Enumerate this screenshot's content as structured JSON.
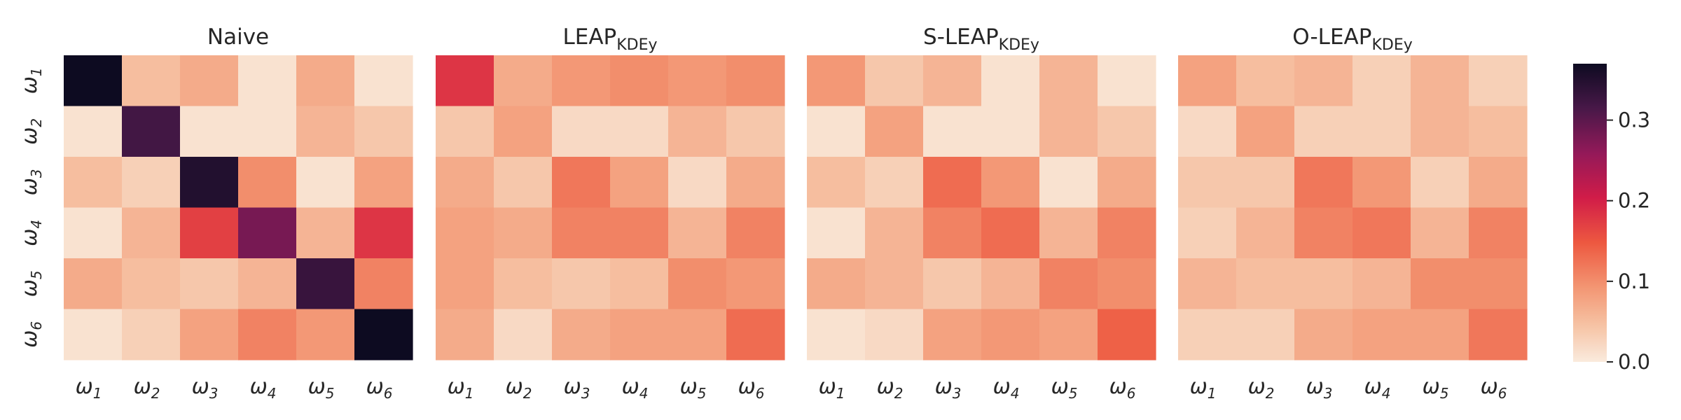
{
  "chart_data": {
    "type": "heatmap",
    "row_labels": [
      {
        "base": "ω",
        "sub": "1"
      },
      {
        "base": "ω",
        "sub": "2"
      },
      {
        "base": "ω",
        "sub": "3"
      },
      {
        "base": "ω",
        "sub": "4"
      },
      {
        "base": "ω",
        "sub": "5"
      },
      {
        "base": "ω",
        "sub": "6"
      }
    ],
    "col_labels": [
      {
        "base": "ω",
        "sub": "1"
      },
      {
        "base": "ω",
        "sub": "2"
      },
      {
        "base": "ω",
        "sub": "3"
      },
      {
        "base": "ω",
        "sub": "4"
      },
      {
        "base": "ω",
        "sub": "5"
      },
      {
        "base": "ω",
        "sub": "6"
      }
    ],
    "colormap": "rocket_r",
    "vmin": 0.0,
    "vmax": 0.37,
    "colorbar_ticks": [
      "0.0",
      "0.1",
      "0.2",
      "0.3"
    ],
    "colorbar_tick_values": [
      0.0,
      0.1,
      0.2,
      0.3
    ],
    "panels": [
      {
        "title": "Naive",
        "title_sub": "",
        "matrix": [
          [
            0.37,
            0.05,
            0.07,
            0.01,
            0.07,
            0.01
          ],
          [
            0.01,
            0.32,
            0.01,
            0.01,
            0.06,
            0.04
          ],
          [
            0.05,
            0.03,
            0.35,
            0.1,
            0.01,
            0.08
          ],
          [
            0.01,
            0.06,
            0.17,
            0.28,
            0.06,
            0.18
          ],
          [
            0.07,
            0.05,
            0.04,
            0.06,
            0.33,
            0.11
          ],
          [
            0.01,
            0.03,
            0.08,
            0.11,
            0.09,
            0.37
          ]
        ]
      },
      {
        "title": "LEAP",
        "title_sub": "KDEy",
        "matrix": [
          [
            0.18,
            0.07,
            0.09,
            0.1,
            0.09,
            0.1
          ],
          [
            0.04,
            0.08,
            0.02,
            0.02,
            0.06,
            0.04
          ],
          [
            0.07,
            0.04,
            0.12,
            0.08,
            0.02,
            0.07
          ],
          [
            0.08,
            0.07,
            0.11,
            0.11,
            0.06,
            0.11
          ],
          [
            0.08,
            0.05,
            0.04,
            0.05,
            0.1,
            0.09
          ],
          [
            0.07,
            0.02,
            0.07,
            0.08,
            0.08,
            0.13
          ]
        ]
      },
      {
        "title": "S-LEAP",
        "title_sub": "KDEy",
        "matrix": [
          [
            0.09,
            0.04,
            0.06,
            0.01,
            0.06,
            0.01
          ],
          [
            0.01,
            0.08,
            0.01,
            0.01,
            0.06,
            0.04
          ],
          [
            0.05,
            0.03,
            0.13,
            0.09,
            0.01,
            0.07
          ],
          [
            0.01,
            0.06,
            0.11,
            0.13,
            0.06,
            0.11
          ],
          [
            0.07,
            0.06,
            0.04,
            0.06,
            0.11,
            0.1
          ],
          [
            0.01,
            0.02,
            0.08,
            0.09,
            0.08,
            0.14
          ]
        ]
      },
      {
        "title": "O-LEAP",
        "title_sub": "KDEy",
        "matrix": [
          [
            0.08,
            0.05,
            0.06,
            0.03,
            0.06,
            0.03
          ],
          [
            0.02,
            0.08,
            0.03,
            0.03,
            0.06,
            0.05
          ],
          [
            0.04,
            0.04,
            0.12,
            0.09,
            0.03,
            0.07
          ],
          [
            0.03,
            0.06,
            0.11,
            0.12,
            0.06,
            0.11
          ],
          [
            0.06,
            0.05,
            0.05,
            0.06,
            0.1,
            0.1
          ],
          [
            0.03,
            0.03,
            0.07,
            0.08,
            0.08,
            0.12
          ]
        ]
      }
    ]
  }
}
